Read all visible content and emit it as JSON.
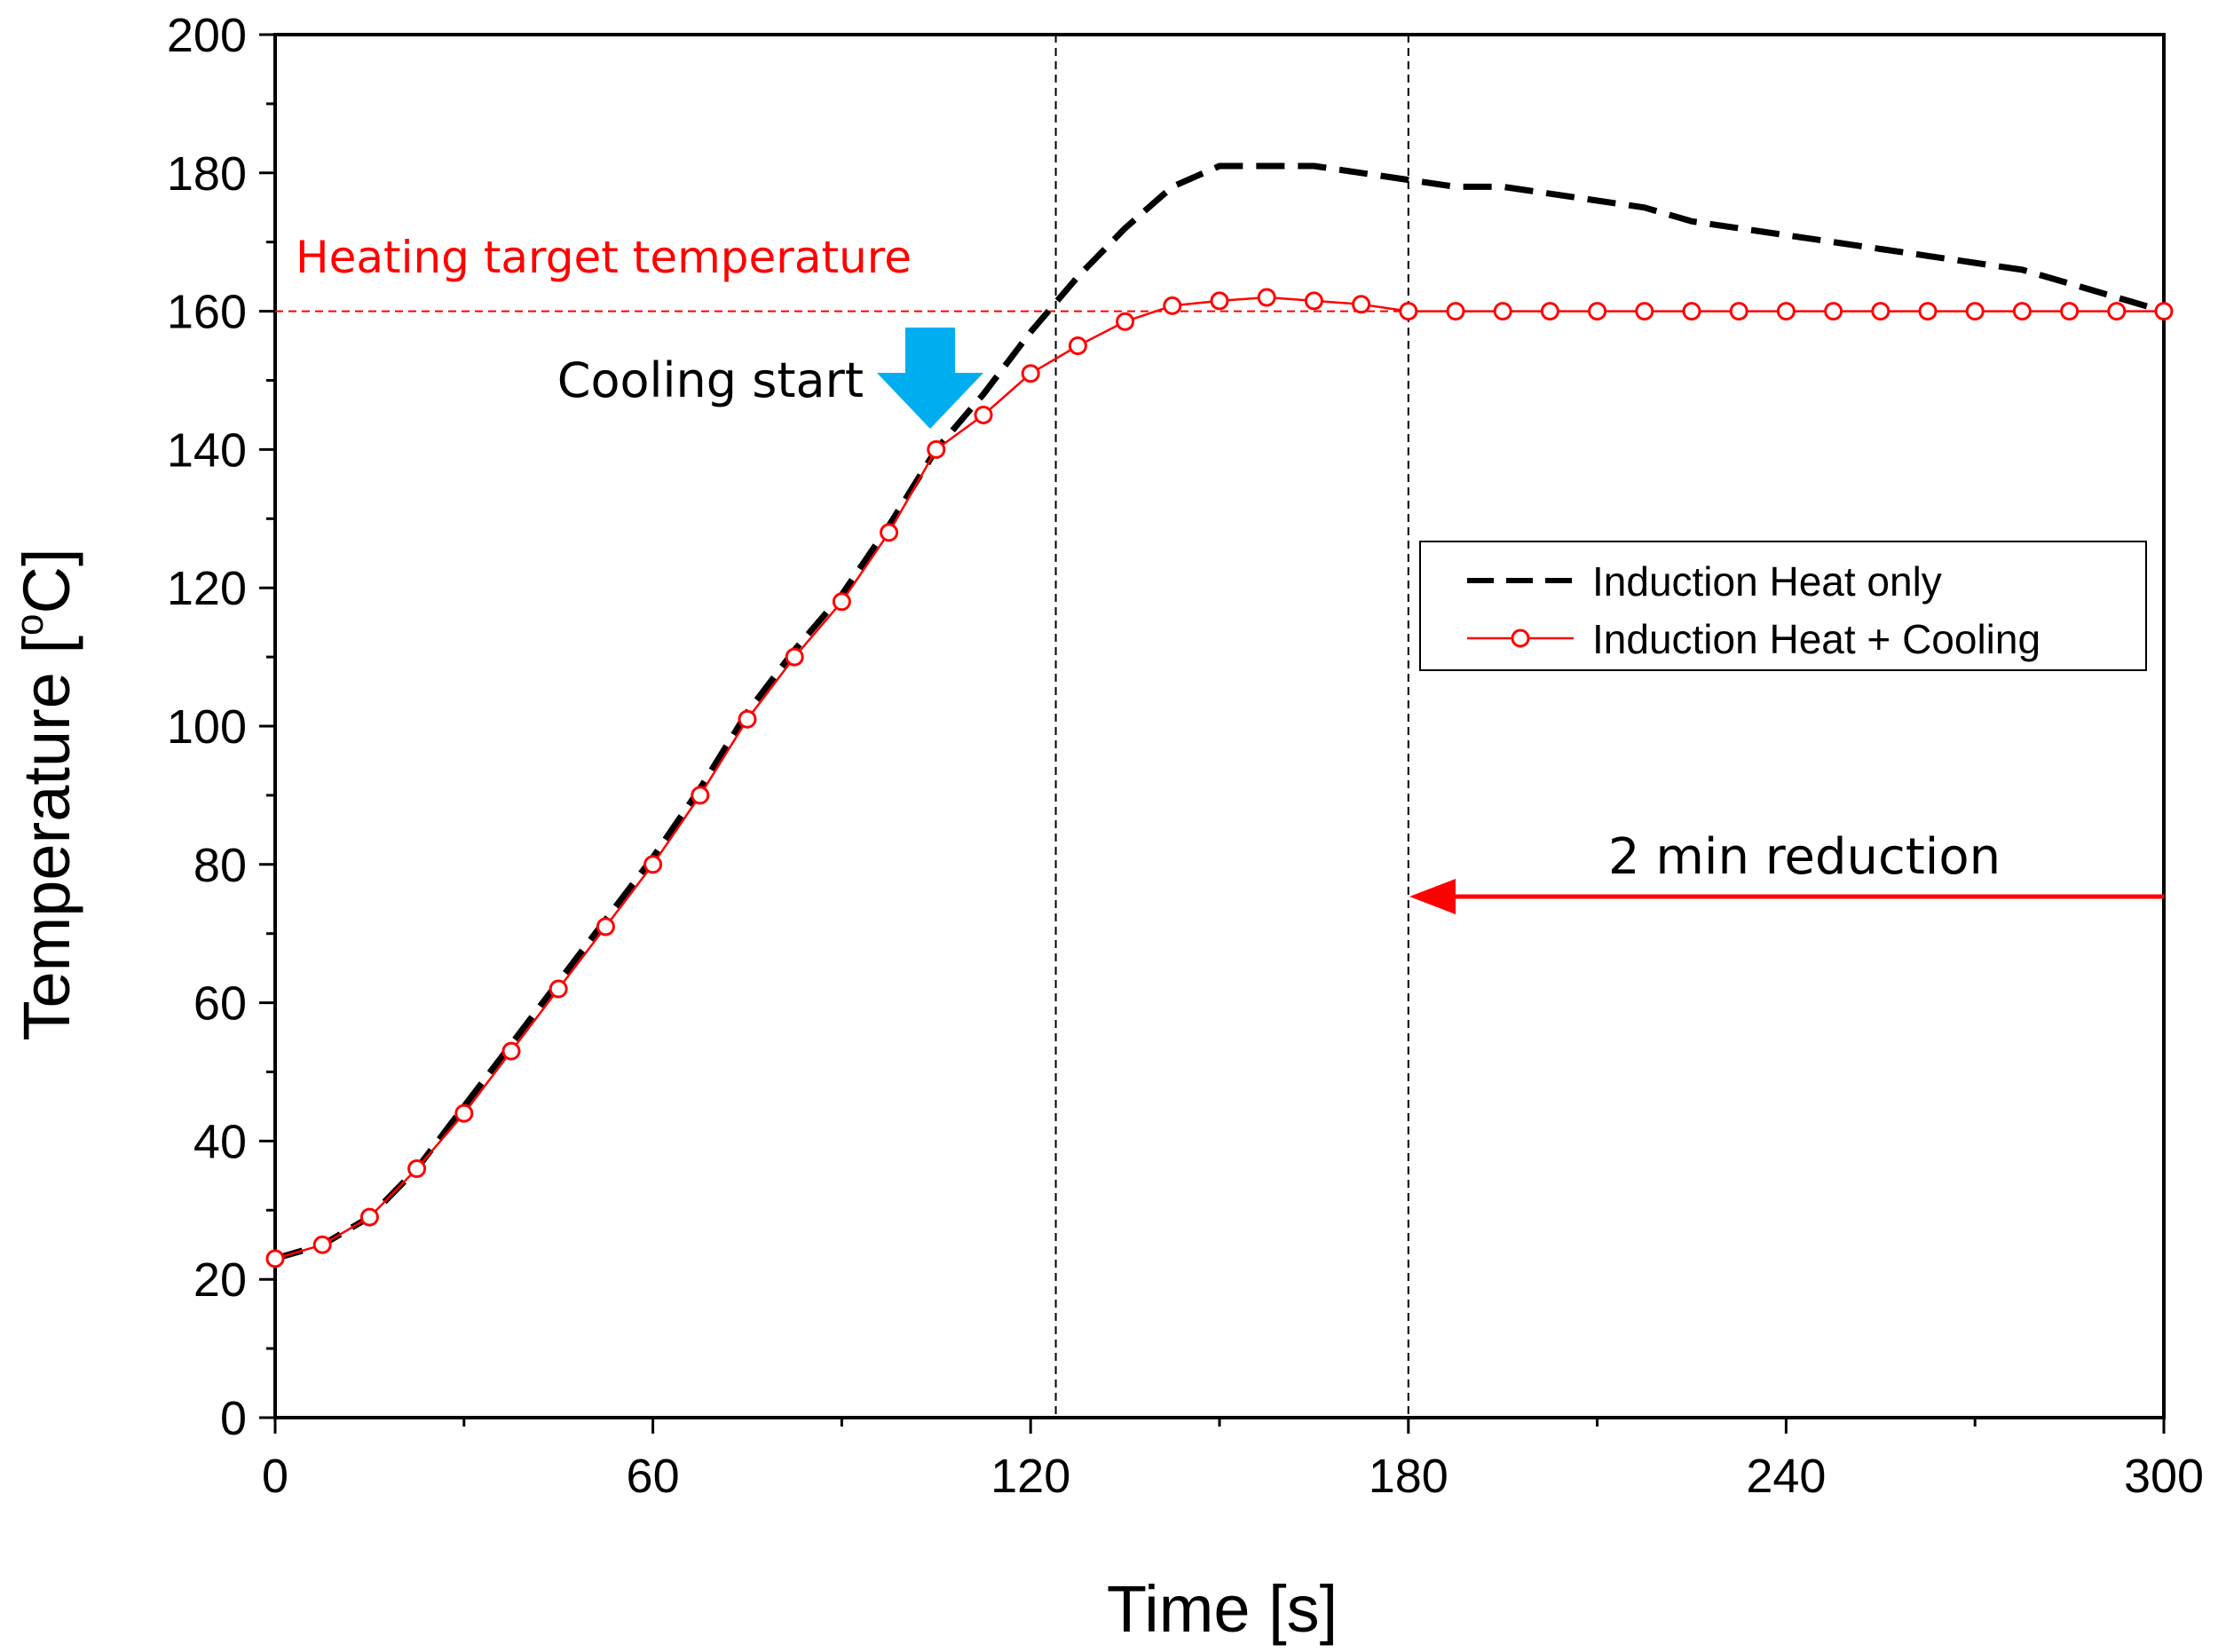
{
  "chart_data": {
    "type": "line",
    "title": "",
    "xlabel": "Time [s]",
    "ylabel": "Temperature [°C]",
    "ylabel_prefix": "Temperature [",
    "ylabel_degree": "o",
    "ylabel_suffix": "C]",
    "xlim": [
      0,
      300
    ],
    "ylim": [
      0,
      200
    ],
    "xticks": [
      0,
      60,
      120,
      180,
      240,
      300
    ],
    "yticks": [
      0,
      20,
      40,
      60,
      80,
      100,
      120,
      140,
      160,
      180,
      200
    ],
    "xminor": [
      30,
      90,
      150,
      210,
      270
    ],
    "yminor": [
      10,
      30,
      50,
      70,
      90,
      110,
      130,
      150,
      170,
      190
    ],
    "grid": false,
    "legend_position": "right",
    "series": [
      {
        "name": "Induction Heat only",
        "style": "dashed",
        "color": "#000000",
        "x": [
          0,
          7.5,
          15,
          22.5,
          30,
          37.5,
          45,
          52.5,
          60,
          67.5,
          75,
          82.5,
          90,
          97.5,
          105,
          112.5,
          120,
          127.5,
          135,
          142.5,
          150,
          157.5,
          165,
          172.5,
          180,
          187.5,
          195,
          202.5,
          210,
          217.5,
          225,
          232.5,
          240,
          247.5,
          255,
          262.5,
          270,
          277.5,
          285,
          292.5,
          300
        ],
        "y": [
          23,
          25,
          29,
          36,
          45,
          54,
          63,
          72,
          81,
          91,
          102,
          111,
          119,
          129,
          140,
          148,
          157,
          165,
          172,
          178,
          181,
          181,
          181,
          180,
          179,
          178,
          178,
          177,
          176,
          175,
          173,
          172,
          171,
          170,
          169,
          168,
          167,
          166,
          164,
          162,
          160
        ]
      },
      {
        "name": "Induction Heat + Cooling",
        "style": "solid-circle",
        "color": "#ff0000",
        "x": [
          0,
          7.5,
          15,
          22.5,
          30,
          37.5,
          45,
          52.5,
          60,
          67.5,
          75,
          82.5,
          90,
          97.5,
          105,
          112.5,
          120,
          127.5,
          135,
          142.5,
          150,
          157.5,
          165,
          172.5,
          180,
          187.5,
          195,
          202.5,
          210,
          217.5,
          225,
          232.5,
          240,
          247.5,
          255,
          262.5,
          270,
          277.5,
          285,
          292.5,
          300
        ],
        "y": [
          23,
          25,
          29,
          36,
          44,
          53,
          62,
          71,
          80,
          90,
          101,
          110,
          118,
          128,
          140,
          145,
          151,
          155,
          158.5,
          160.8,
          161.5,
          162,
          161.5,
          161,
          160,
          160,
          160,
          160,
          160,
          160,
          160,
          160,
          160,
          160,
          160,
          160,
          160,
          160,
          160,
          160,
          160
        ]
      }
    ],
    "reference_lines": {
      "horizontal": [
        {
          "y": 160,
          "label": "Heating target temperature",
          "color": "#ff0000"
        }
      ],
      "vertical": [
        124,
        180
      ]
    },
    "annotations": [
      {
        "text": "Cooling start",
        "x": 104,
        "y": 143,
        "marker": "down-arrow",
        "color": "#00aeef"
      },
      {
        "text": "2 min reduction",
        "x_from": 300,
        "x_to": 180,
        "y": 75,
        "marker": "left-arrow",
        "color": "#ff0000"
      }
    ]
  }
}
